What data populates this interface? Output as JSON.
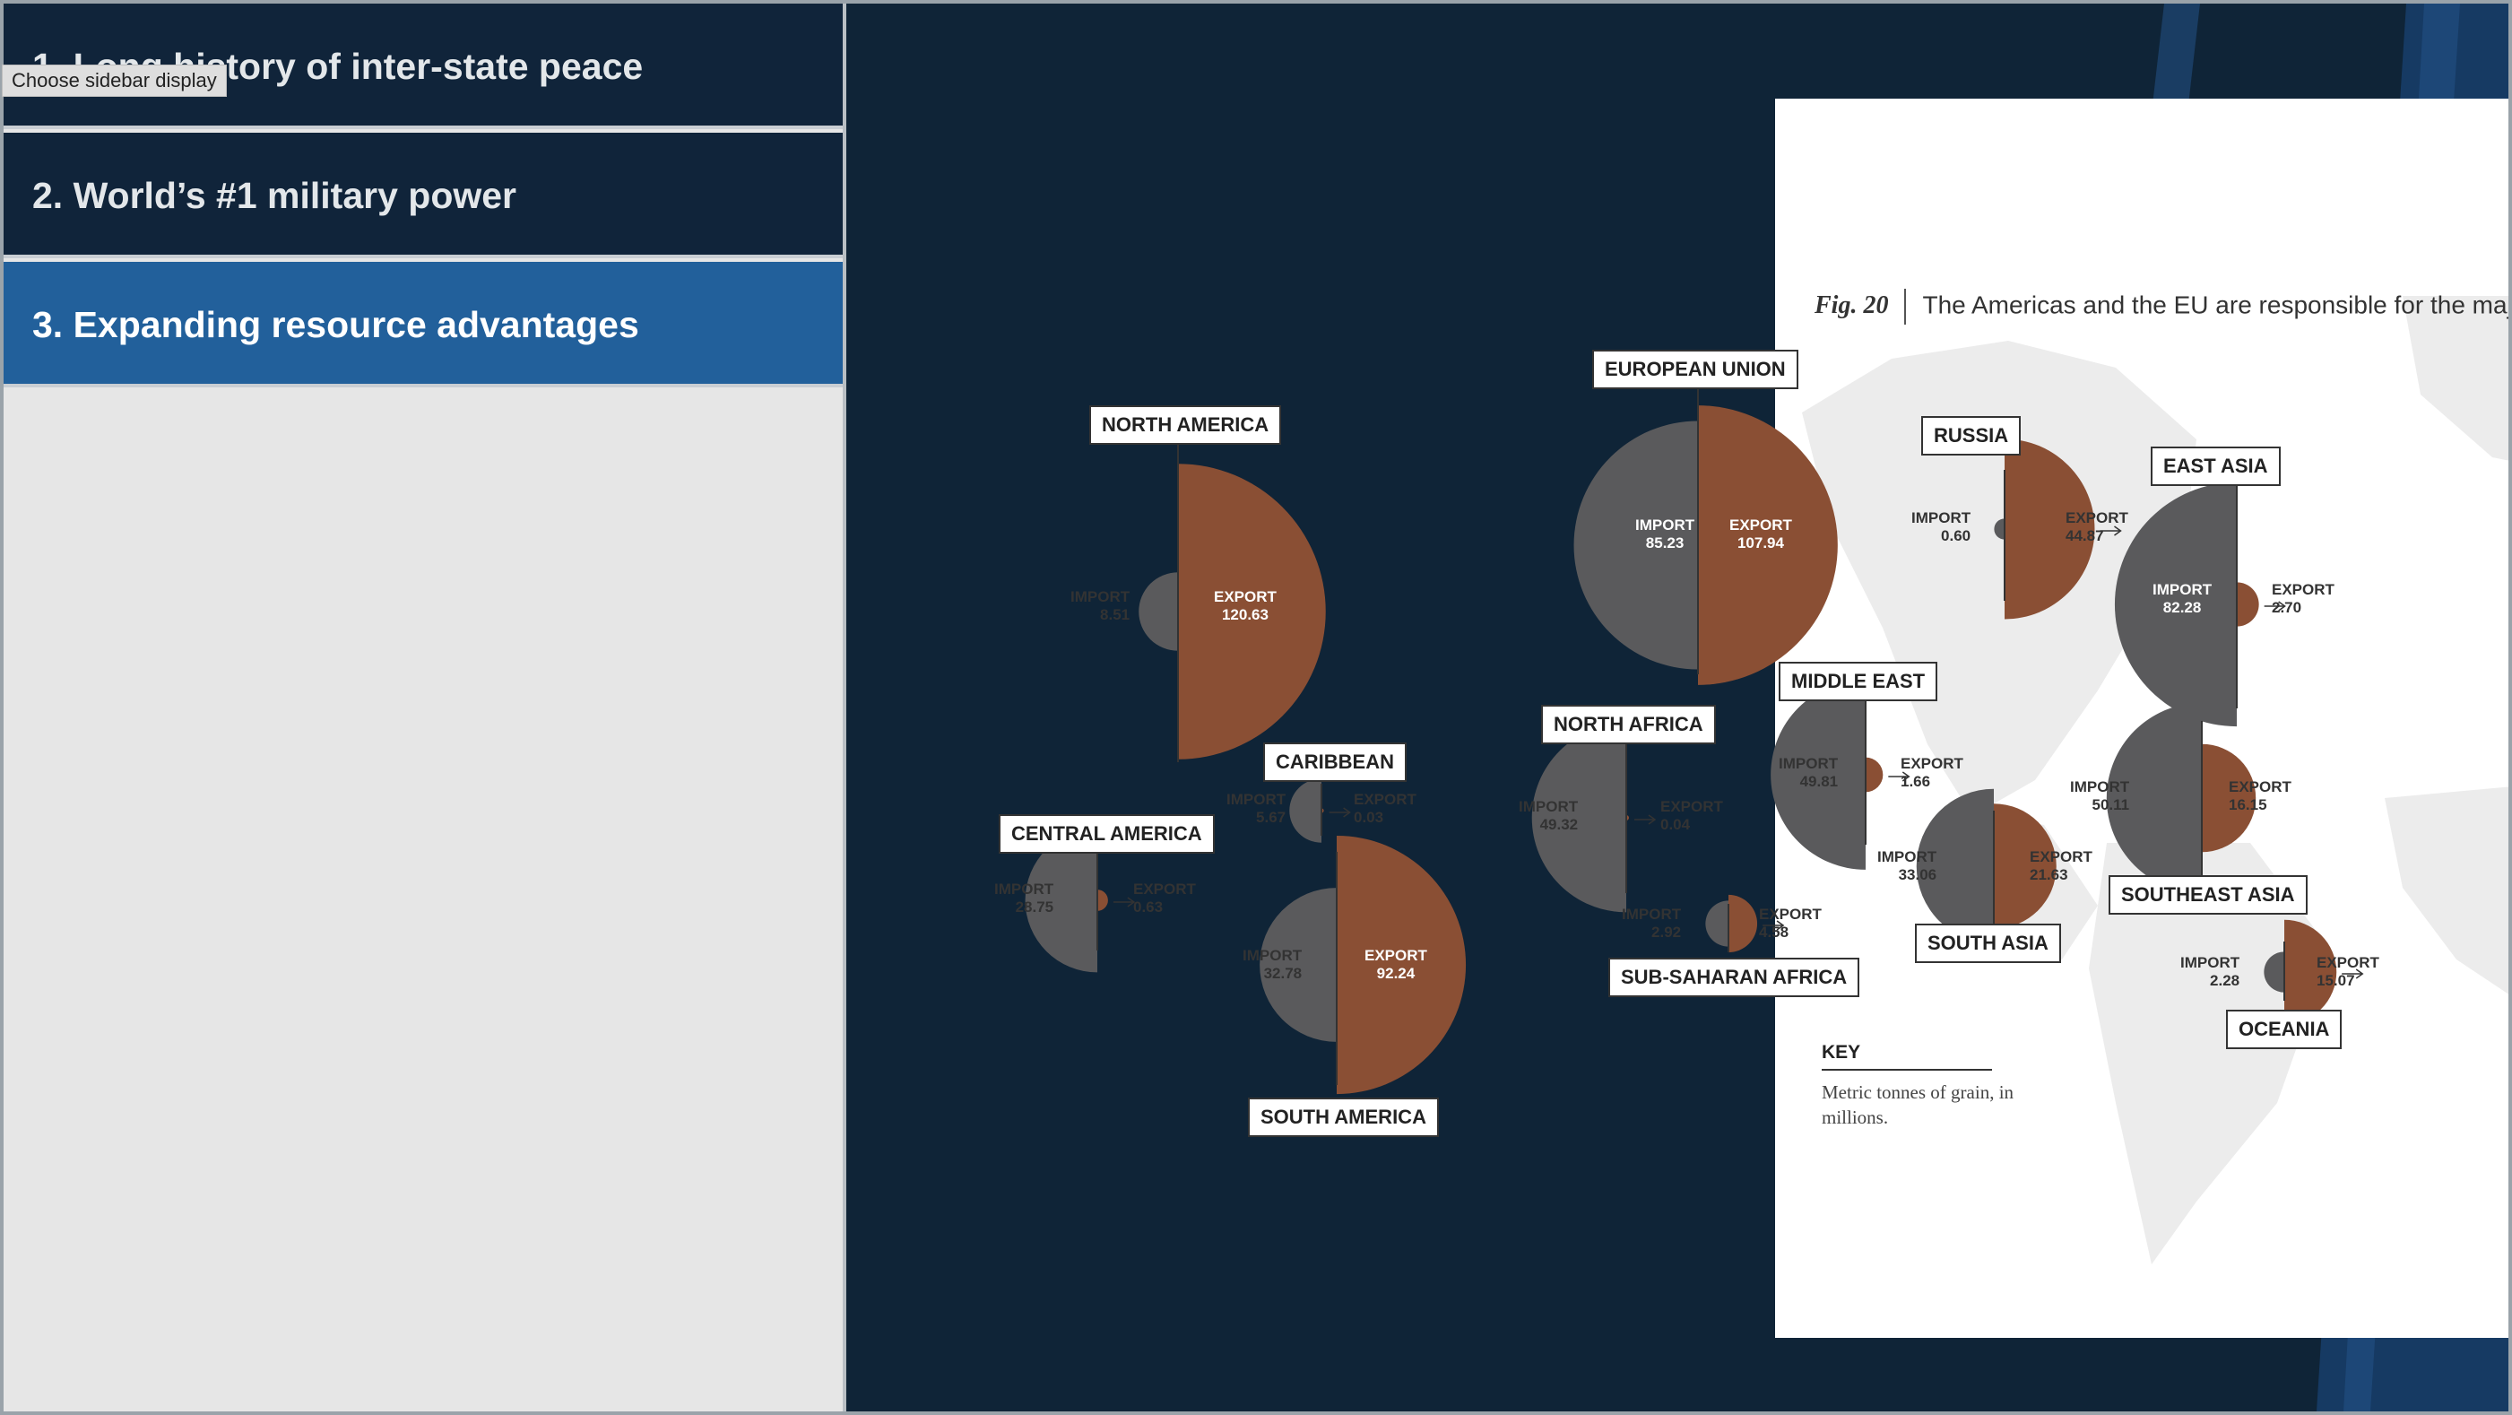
{
  "sidebar": {
    "tooltip": "Choose sidebar display",
    "items": [
      {
        "label": "1. Long history of inter-state peace",
        "active": false
      },
      {
        "label": "2. World’s #1 military power",
        "active": false
      },
      {
        "label": "3. Expanding resource advantages",
        "active": true
      }
    ]
  },
  "figure": {
    "fig_label": "Fig. 20",
    "caption": "The Americas and the EU are responsible for the majority of the world's grains exports.",
    "import_label": "IMPORT",
    "export_label": "EXPORT",
    "key_title": "KEY",
    "key_text": "Metric tonnes of grain, in millions."
  },
  "colors": {
    "import": "#5a5a5c",
    "export": "#8a4f34",
    "page_bg": "#0f2437",
    "active": "#22609b",
    "land": "#ececec"
  },
  "chart_data": {
    "type": "split-circle map",
    "unit": "Metric tonnes of grain, in millions.",
    "regions": [
      {
        "name": "NORTH AMERICA",
        "import": "8.51",
        "export": "120.63"
      },
      {
        "name": "EUROPEAN UNION",
        "import": "85.23",
        "export": "107.94"
      },
      {
        "name": "RUSSIA",
        "import": "0.60",
        "export": "44.87"
      },
      {
        "name": "EAST ASIA",
        "import": "82.28",
        "export": "2.70"
      },
      {
        "name": "MIDDLE EAST",
        "import": "49.81",
        "export": "1.66"
      },
      {
        "name": "NORTH AFRICA",
        "import": "49.32",
        "export": "0.04"
      },
      {
        "name": "CARIBBEAN",
        "import": "5.67",
        "export": "0.03"
      },
      {
        "name": "CENTRAL AMERICA",
        "import": "28.75",
        "export": "0.63"
      },
      {
        "name": "SOUTH AMERICA",
        "import": "32.78",
        "export": "92.24"
      },
      {
        "name": "SUB-SAHARAN AFRICA",
        "import": "2.92",
        "export": "4.58"
      },
      {
        "name": "SOUTHEAST ASIA",
        "import": "50.11",
        "export": "16.15"
      },
      {
        "name": "SOUTH ASIA",
        "import": "33.06",
        "export": "21.63"
      },
      {
        "name": "OCEANIA",
        "import": "2.28",
        "export": "15.07"
      }
    ]
  }
}
